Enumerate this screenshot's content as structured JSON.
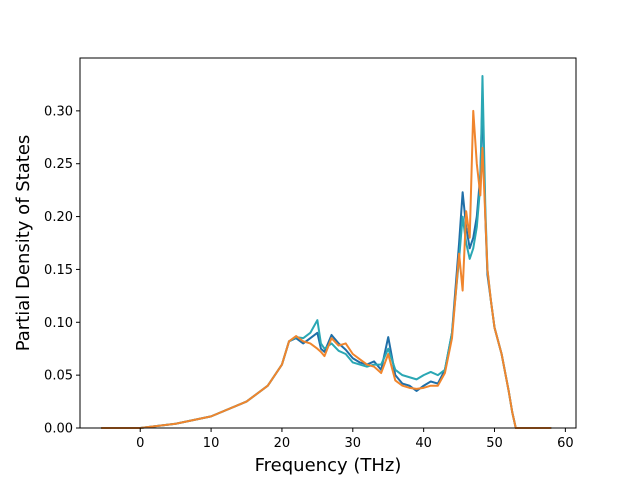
{
  "chart_data": {
    "type": "line",
    "title": "",
    "xlabel": "Frequency (THz)",
    "ylabel": "Partial Density of States",
    "xlim": [
      -8.5,
      61.5
    ],
    "ylim": [
      0.0,
      0.35
    ],
    "xticks": [
      0,
      10,
      20,
      30,
      40,
      50,
      60
    ],
    "xtick_labels": [
      "0",
      "10",
      "20",
      "30",
      "40",
      "50",
      "60"
    ],
    "yticks": [
      0.0,
      0.05,
      0.1,
      0.15,
      0.2,
      0.25,
      0.3
    ],
    "ytick_labels": [
      "0.00",
      "0.05",
      "0.10",
      "0.15",
      "0.20",
      "0.25",
      "0.30"
    ],
    "grid": false,
    "legend": "none",
    "series": [
      {
        "color": "#1f6fa8",
        "x": [
          -5.5,
          0,
          5,
          10,
          15,
          18,
          20,
          21,
          22,
          23,
          24,
          25,
          25.5,
          26,
          27,
          28,
          29,
          30,
          31,
          32,
          33,
          34,
          35,
          36,
          37,
          38,
          39,
          40,
          41,
          42,
          43,
          44,
          45,
          45.5,
          46,
          46.5,
          47,
          47.5,
          48,
          48.3,
          48.7,
          49,
          49.5,
          50,
          51,
          52,
          52.5,
          53,
          58
        ],
        "y": [
          0.0,
          0.0,
          0.004,
          0.011,
          0.025,
          0.04,
          0.06,
          0.082,
          0.085,
          0.08,
          0.085,
          0.09,
          0.075,
          0.072,
          0.088,
          0.08,
          0.074,
          0.066,
          0.062,
          0.06,
          0.063,
          0.055,
          0.086,
          0.05,
          0.042,
          0.04,
          0.035,
          0.04,
          0.044,
          0.042,
          0.055,
          0.09,
          0.175,
          0.223,
          0.19,
          0.17,
          0.18,
          0.2,
          0.24,
          0.31,
          0.2,
          0.145,
          0.12,
          0.095,
          0.07,
          0.035,
          0.015,
          0.0,
          0.0
        ]
      },
      {
        "color": "#2aa7b4",
        "x": [
          -5.5,
          0,
          5,
          10,
          15,
          18,
          20,
          21,
          22,
          23,
          24,
          25,
          25.5,
          26,
          27,
          28,
          29,
          30,
          31,
          32,
          33,
          34,
          35,
          36,
          37,
          38,
          39,
          40,
          41,
          42,
          43,
          44,
          45,
          45.5,
          46,
          46.5,
          47,
          47.5,
          48,
          48.3,
          48.7,
          49,
          49.5,
          50,
          51,
          52,
          52.5,
          53,
          58
        ],
        "y": [
          0.0,
          0.0,
          0.004,
          0.011,
          0.025,
          0.04,
          0.06,
          0.082,
          0.086,
          0.085,
          0.09,
          0.102,
          0.08,
          0.075,
          0.08,
          0.073,
          0.07,
          0.062,
          0.06,
          0.058,
          0.06,
          0.06,
          0.075,
          0.055,
          0.05,
          0.048,
          0.046,
          0.05,
          0.053,
          0.05,
          0.055,
          0.09,
          0.16,
          0.2,
          0.175,
          0.16,
          0.17,
          0.19,
          0.23,
          0.333,
          0.21,
          0.15,
          0.12,
          0.095,
          0.07,
          0.035,
          0.015,
          0.0,
          0.0
        ]
      },
      {
        "color": "#f0852d",
        "x": [
          -5.5,
          0,
          5,
          10,
          15,
          18,
          20,
          21,
          22,
          23,
          24,
          25,
          25.5,
          26,
          27,
          28,
          29,
          30,
          31,
          32,
          33,
          34,
          35,
          36,
          37,
          38,
          39,
          40,
          41,
          42,
          43,
          44,
          45,
          45.5,
          46,
          46.5,
          47,
          47.5,
          48,
          48.3,
          48.7,
          49,
          49.5,
          50,
          51,
          52,
          52.5,
          53,
          58
        ],
        "y": [
          0.0,
          0.0,
          0.004,
          0.011,
          0.025,
          0.04,
          0.06,
          0.082,
          0.087,
          0.082,
          0.08,
          0.075,
          0.072,
          0.068,
          0.085,
          0.078,
          0.08,
          0.07,
          0.065,
          0.06,
          0.058,
          0.052,
          0.07,
          0.045,
          0.04,
          0.038,
          0.037,
          0.038,
          0.04,
          0.04,
          0.052,
          0.085,
          0.165,
          0.13,
          0.205,
          0.18,
          0.3,
          0.25,
          0.22,
          0.265,
          0.2,
          0.15,
          0.12,
          0.095,
          0.07,
          0.035,
          0.015,
          0.0,
          0.0
        ]
      }
    ]
  }
}
